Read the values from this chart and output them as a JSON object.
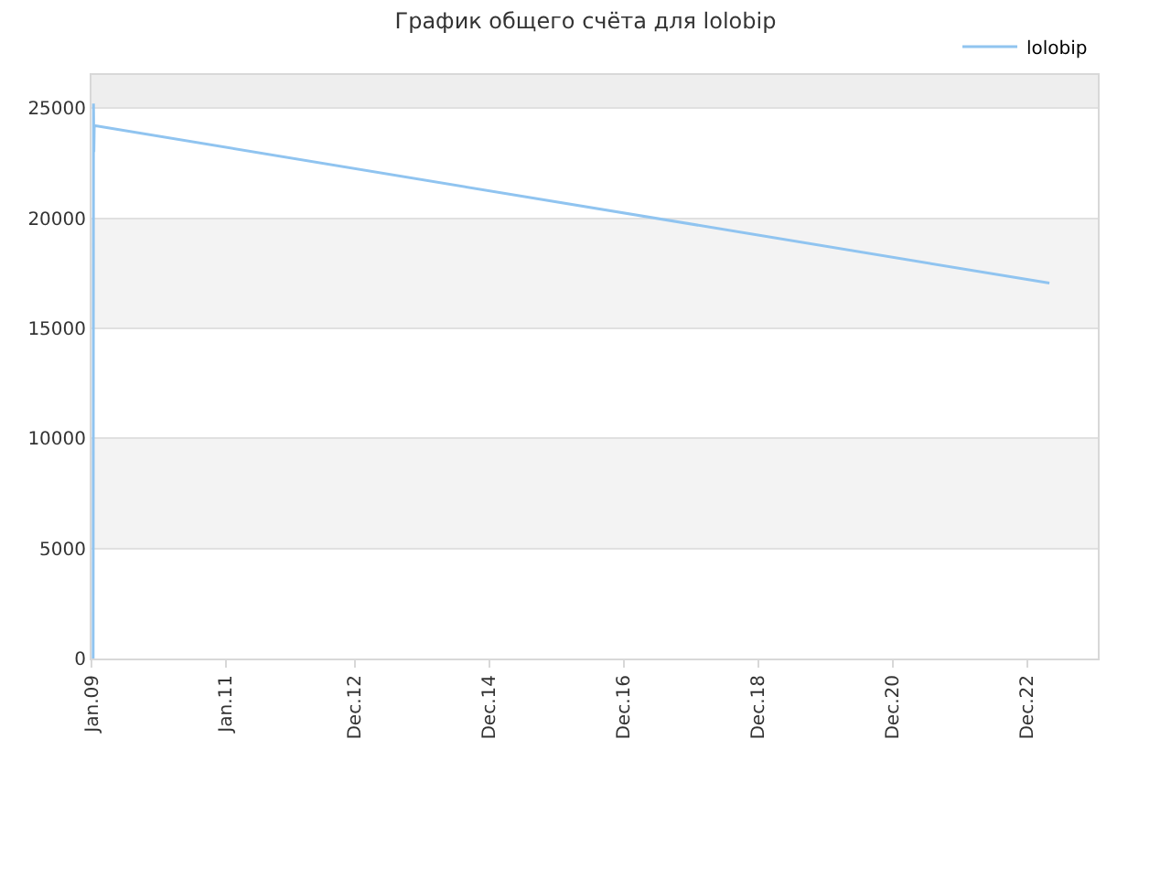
{
  "chart_data": {
    "type": "line",
    "title": "График общего счёта для lolobip",
    "x": [
      "2009-01-10",
      "2009-01-12",
      "2009-01-14",
      "2009-01-16",
      "2023-04-01"
    ],
    "series": [
      {
        "name": "lolobip",
        "color": "#90c4f0",
        "values": [
          0,
          25200,
          23000,
          24200,
          17050
        ]
      }
    ],
    "xlim": [
      "2009-01-01",
      "2023-12-20"
    ],
    "xticks": [
      {
        "value": "2009-01-01",
        "label": "Jan.09"
      },
      {
        "value": "2011-01-01",
        "label": "Jan.11"
      },
      {
        "value": "2012-12-01",
        "label": "Dec.12"
      },
      {
        "value": "2014-12-01",
        "label": "Dec.14"
      },
      {
        "value": "2016-12-01",
        "label": "Dec.16"
      },
      {
        "value": "2018-12-01",
        "label": "Dec.18"
      },
      {
        "value": "2020-12-01",
        "label": "Dec.20"
      },
      {
        "value": "2022-12-01",
        "label": "Dec.22"
      }
    ],
    "ylim": [
      0,
      26500
    ],
    "yticks": [
      0,
      5000,
      10000,
      15000,
      20000,
      25000
    ],
    "bands": [
      {
        "axis": "y",
        "from": 5000,
        "to": 10000,
        "color": "#f3f3f3"
      },
      {
        "axis": "y",
        "from": 15000,
        "to": 20000,
        "color": "#f3f3f3"
      },
      {
        "axis": "y",
        "from": 25000,
        "to": 26500,
        "color": "#eeeeee"
      }
    ],
    "grid": "y",
    "legend": "top right",
    "marker": "none",
    "line_style": "solid"
  }
}
